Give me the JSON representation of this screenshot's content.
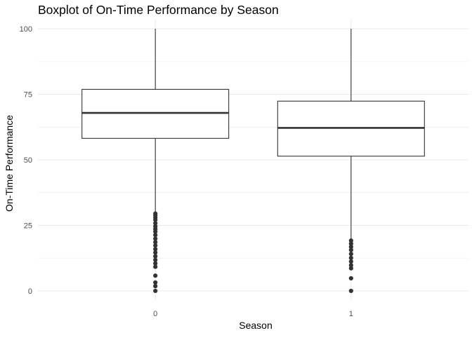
{
  "chart_data": {
    "type": "boxplot",
    "title": "Boxplot of On-Time Performance by Season",
    "xlabel": "Season",
    "ylabel": "On-Time Performance",
    "ylim": [
      -3.5,
      103.5
    ],
    "yticks": [
      0,
      25,
      50,
      75,
      100
    ],
    "grid": true,
    "colors": {
      "box_stroke": "#333333",
      "box_fill": "#ffffff",
      "outlier": "#333333",
      "grid": "#ebebeb",
      "text": "#4d4d4d"
    },
    "categories": [
      "0",
      "1"
    ],
    "boxes": [
      {
        "category": "0",
        "q1": 58.2,
        "median": 67.9,
        "q3": 76.9,
        "whisker_low": 30.0,
        "whisker_high": 100,
        "outliers": [
          0,
          1.8,
          3.2,
          5.8,
          9.2,
          10.5,
          11.8,
          13.2,
          14.6,
          15.9,
          17.3,
          18.6,
          19.9,
          21.3,
          22.6,
          23.6,
          24.6,
          25.8,
          27.1,
          28.0,
          28.9,
          29.5
        ]
      },
      {
        "category": "1",
        "q1": 51.4,
        "median": 62.2,
        "q3": 72.4,
        "whisker_low": 19.8,
        "whisker_high": 100,
        "outliers": [
          0,
          4.8,
          8.6,
          9.8,
          11.2,
          12.6,
          14.1,
          15.6,
          16.8,
          18.0,
          19.2
        ]
      }
    ]
  }
}
